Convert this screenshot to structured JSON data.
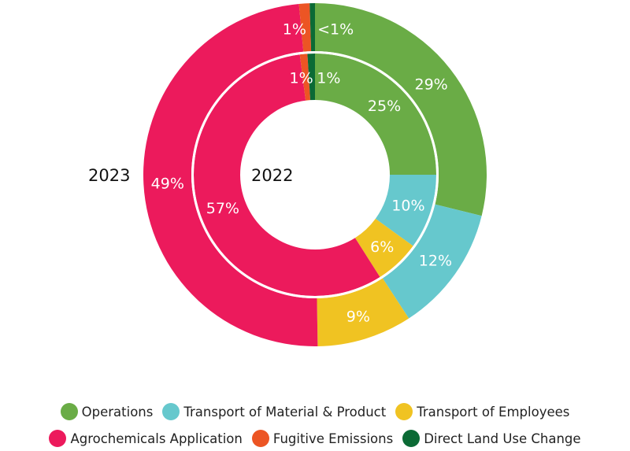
{
  "chart_data": {
    "type": "pie",
    "subtype": "nested-donut",
    "rings": [
      {
        "name": "2023",
        "position": "outer",
        "values": [
          29,
          12,
          9,
          49,
          1,
          0.5
        ],
        "labels": [
          "29%",
          "12%",
          "9%",
          "49%",
          "1%",
          "<1%"
        ]
      },
      {
        "name": "2022",
        "position": "inner",
        "values": [
          25,
          10,
          6,
          57,
          1,
          1
        ],
        "labels": [
          "25%",
          "10%",
          "6%",
          "57%",
          "1%",
          "1%"
        ]
      }
    ],
    "categories": [
      "Operations",
      "Transport of Material & Product",
      "Transport of Employees",
      "Agrochemicals Application",
      "Fugitive Emissions",
      "Direct Land Use Change"
    ],
    "colors": [
      "#6aac46",
      "#66c8cd",
      "#f0c322",
      "#ec1a5c",
      "#ec5524",
      "#0b6a35"
    ],
    "year_labels": {
      "outer": "2023",
      "inner": "2022"
    },
    "legend_position": "bottom"
  },
  "legend": {
    "rows": [
      [
        {
          "label": "Operations",
          "color": "#6aac46"
        },
        {
          "label": "Transport of Material & Product",
          "color": "#66c8cd"
        },
        {
          "label": "Transport of Employees",
          "color": "#f0c322"
        }
      ],
      [
        {
          "label": "Agrochemicals Application",
          "color": "#ec1a5c"
        },
        {
          "label": "Fugitive Emissions",
          "color": "#ec5524"
        },
        {
          "label": "Direct Land Use Change",
          "color": "#0b6a35"
        }
      ]
    ]
  }
}
